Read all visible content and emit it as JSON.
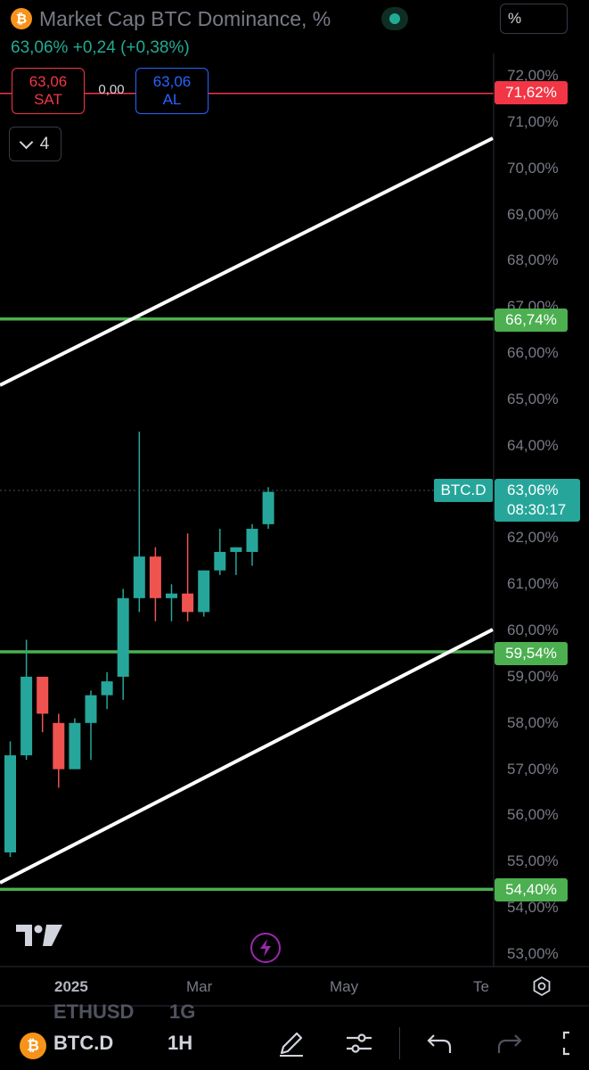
{
  "header": {
    "symbol_icon": "bitcoin-icon",
    "title": "Market Cap BTC Dominance, %",
    "status": "market-open-dot",
    "scale_button": "%",
    "last_change": "63,06%  +0,24 (+0,38%)"
  },
  "trade": {
    "sell_price": "63,06",
    "sell_label": "SAT",
    "spread": "0,00",
    "buy_price": "63,06",
    "buy_label": "AL"
  },
  "indicators_toggle": {
    "count": "4"
  },
  "price_labels": {
    "red": "71,62%",
    "green_top": "66,74%",
    "green_mid": "59,54%",
    "green_bottom": "54,40%",
    "symbol_tag": "BTC.D",
    "current": "63,06%",
    "countdown": "08:30:17"
  },
  "time_axis": [
    "2025",
    "Mar",
    "May",
    "Te"
  ],
  "bottom_bar": {
    "symbol": "BTC.D",
    "interval": "1H",
    "ghost_symbol": "ETHUSD",
    "ghost_interval": "1G"
  },
  "colors": {
    "up": "#26a69a",
    "down": "#ef5350",
    "support_lines": "#4caf50",
    "alert_line": "#f23645",
    "trend_lines": "#ffffff"
  },
  "chart_data": {
    "type": "candlestick",
    "symbol": "BTC.D",
    "unit": "%",
    "y_range": [
      52.8,
      72.4
    ],
    "y_ticks": [
      "72,00%",
      "71,00%",
      "70,00%",
      "69,00%",
      "68,00%",
      "67,00%",
      "66,00%",
      "65,00%",
      "64,00%",
      "63,00%",
      "62,00%",
      "61,00%",
      "60,00%",
      "59,00%",
      "58,00%",
      "57,00%",
      "56,00%",
      "55,00%",
      "54,00%",
      "53,00%"
    ],
    "y_tick_values": [
      72,
      71,
      70,
      69,
      68,
      67,
      66,
      65,
      64,
      63,
      62,
      61,
      60,
      59,
      58,
      57,
      56,
      55,
      54,
      53
    ],
    "candles": [
      {
        "o": 55.2,
        "h": 57.6,
        "l": 55.1,
        "c": 57.3
      },
      {
        "o": 57.3,
        "h": 59.8,
        "l": 57.2,
        "c": 59.0
      },
      {
        "o": 59.0,
        "h": 59.0,
        "l": 57.8,
        "c": 58.2
      },
      {
        "o": 58.0,
        "h": 58.2,
        "l": 56.6,
        "c": 57.0
      },
      {
        "o": 57.0,
        "h": 58.1,
        "l": 57.0,
        "c": 58.0
      },
      {
        "o": 58.0,
        "h": 58.7,
        "l": 57.2,
        "c": 58.6
      },
      {
        "o": 58.6,
        "h": 59.1,
        "l": 58.3,
        "c": 58.9
      },
      {
        "o": 59.0,
        "h": 60.9,
        "l": 58.5,
        "c": 60.7
      },
      {
        "o": 60.7,
        "h": 64.3,
        "l": 60.4,
        "c": 61.6
      },
      {
        "o": 61.6,
        "h": 61.8,
        "l": 60.2,
        "c": 60.7
      },
      {
        "o": 60.7,
        "h": 61.0,
        "l": 60.2,
        "c": 60.8
      },
      {
        "o": 60.8,
        "h": 62.1,
        "l": 60.2,
        "c": 60.4
      },
      {
        "o": 60.4,
        "h": 61.3,
        "l": 60.3,
        "c": 61.3
      },
      {
        "o": 61.3,
        "h": 62.2,
        "l": 61.2,
        "c": 61.7
      },
      {
        "o": 61.7,
        "h": 61.8,
        "l": 61.2,
        "c": 61.8
      },
      {
        "o": 61.7,
        "h": 62.3,
        "l": 61.4,
        "c": 62.2
      },
      {
        "o": 62.3,
        "h": 63.1,
        "l": 62.2,
        "c": 63.0
      }
    ],
    "horizontal_lines": [
      {
        "value": 71.62,
        "color": "red"
      },
      {
        "value": 66.74,
        "color": "green"
      },
      {
        "value": 59.54,
        "color": "green"
      },
      {
        "value": 54.4,
        "color": "green"
      }
    ],
    "last_price": 63.06,
    "grid": false,
    "legend": "none"
  }
}
